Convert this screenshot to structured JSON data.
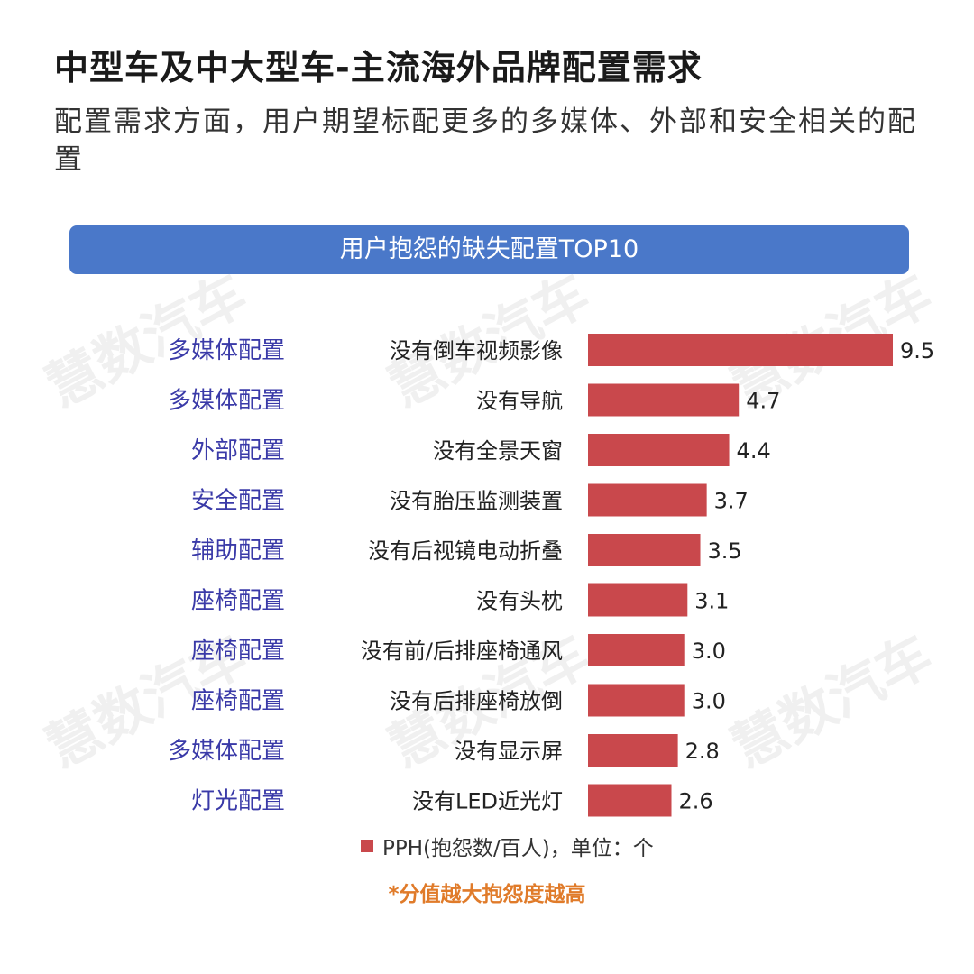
{
  "title": "中型车及中大型车-主流海外品牌配置需求",
  "subtitle": "配置需求方面，用户期望标配更多的多媒体、外部和安全相关的配置",
  "banner": "用户抱怨的缺失配置TOP10",
  "watermark": "慧数汽车",
  "legend": "PPH(抱怨数/百人)，单位：个",
  "footnote": "*分值越大抱怨度越高",
  "colors": {
    "bar": "#c9484c",
    "category": "#3a3aa8",
    "banner": "#4a78c9",
    "footnote": "#e07b2a"
  },
  "chart_data": {
    "type": "bar",
    "orientation": "horizontal",
    "groups": [
      "多媒体配置",
      "多媒体配置",
      "外部配置",
      "安全配置",
      "辅助配置",
      "座椅配置",
      "座椅配置",
      "座椅配置",
      "多媒体配置",
      "灯光配置"
    ],
    "categories": [
      "没有倒车视频影像",
      "没有导航",
      "没有全景天窗",
      "没有胎压监测装置",
      "没有后视镜电动折叠",
      "没有头枕",
      "没有前/后排座椅通风",
      "没有后排座椅放倒",
      "没有显示屏",
      "没有LED近光灯"
    ],
    "series": [
      {
        "name": "PPH(抱怨数/百人)，单位：个",
        "values": [
          9.5,
          4.7,
          4.4,
          3.7,
          3.5,
          3.1,
          3.0,
          3.0,
          2.8,
          2.6
        ]
      }
    ],
    "value_labels": [
      "9.5",
      "4.7",
      "4.4",
      "3.7",
      "3.5",
      "3.1",
      "3.0",
      "3.0",
      "2.8",
      "2.6"
    ],
    "xlim": [
      0,
      9.5
    ],
    "grid": false,
    "legend_position": "bottom"
  }
}
